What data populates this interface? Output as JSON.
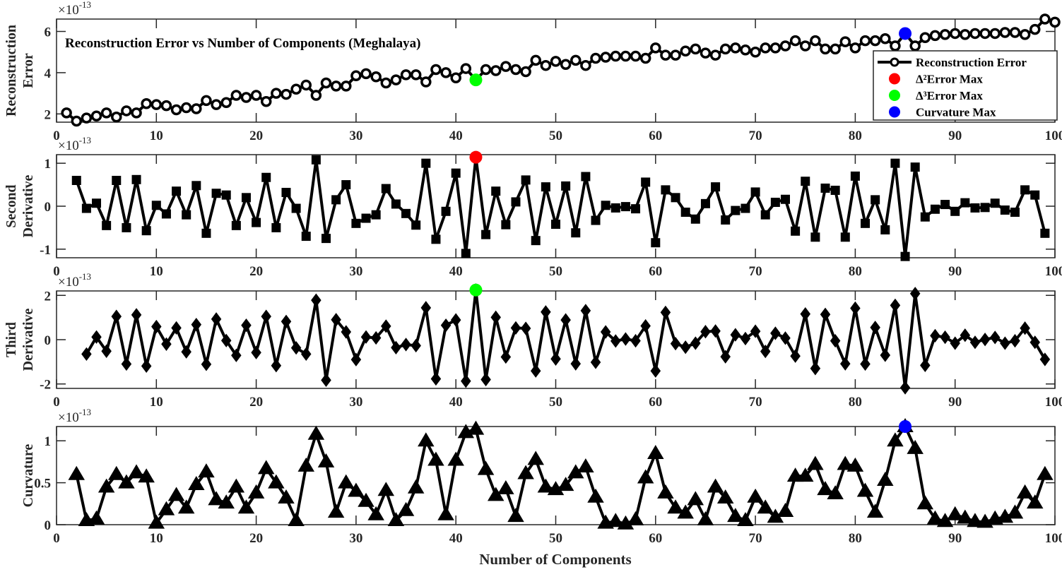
{
  "chart_data": [
    {
      "type": "line",
      "title": "Reconstruction Error vs Number of Components (Meghalaya)",
      "ylabel": [
        "Reconstruction",
        "Error"
      ],
      "xlabel": "",
      "multiplier": "×10",
      "multiplier_exp": "-13",
      "xlim": [
        0,
        100
      ],
      "ylim": [
        1.6,
        6.6
      ],
      "xticks": [
        0,
        10,
        20,
        30,
        40,
        50,
        60,
        70,
        80,
        90,
        100
      ],
      "yticks": [
        2,
        4,
        6
      ],
      "marker": "circle",
      "x_start": 1,
      "values": [
        2.05,
        1.65,
        1.8,
        1.9,
        2.05,
        1.85,
        2.15,
        2.05,
        2.5,
        2.45,
        2.4,
        2.2,
        2.3,
        2.25,
        2.65,
        2.45,
        2.55,
        2.9,
        2.8,
        2.9,
        2.6,
        3.0,
        2.95,
        3.2,
        3.4,
        2.9,
        3.5,
        3.35,
        3.35,
        3.85,
        3.95,
        3.8,
        3.5,
        3.65,
        3.9,
        3.9,
        3.55,
        4.15,
        4.0,
        3.75,
        4.2,
        3.65,
        4.15,
        4.1,
        4.3,
        4.15,
        4.05,
        4.6,
        4.35,
        4.55,
        4.4,
        4.6,
        4.35,
        4.7,
        4.75,
        4.8,
        4.8,
        4.8,
        4.7,
        5.2,
        4.85,
        4.85,
        5.05,
        5.15,
        4.95,
        4.85,
        5.15,
        5.2,
        5.1,
        5.0,
        5.2,
        5.2,
        5.3,
        5.55,
        5.3,
        5.55,
        5.15,
        5.15,
        5.5,
        5.2,
        5.55,
        5.55,
        5.65,
        5.3,
        5.9,
        5.3,
        5.7,
        5.8,
        5.85,
        5.9,
        5.85,
        5.9,
        5.9,
        5.9,
        5.95,
        5.95,
        5.85,
        6.1,
        6.6,
        6.45
      ],
      "highlights": [
        {
          "x": 42,
          "y": 3.65,
          "color": "#00ff00"
        },
        {
          "x": 85,
          "y": 5.9,
          "color": "#0000ff"
        }
      ],
      "legend": {
        "placement": "lower-right",
        "entries": [
          {
            "label": "Reconstruction Error",
            "color": "#000000",
            "type": "line-circle"
          },
          {
            "label": "Δ²Error Max",
            "color": "#ff0000",
            "type": "dot"
          },
          {
            "label": "Δ³Error Max",
            "color": "#00ff00",
            "type": "dot"
          },
          {
            "label": "Curvature Max",
            "color": "#0000ff",
            "type": "dot"
          }
        ]
      }
    },
    {
      "type": "line",
      "ylabel": [
        "Second",
        "Derivative"
      ],
      "multiplier": "×10",
      "multiplier_exp": "-13",
      "xlim": [
        0,
        100
      ],
      "ylim": [
        -1.2,
        1.2
      ],
      "xticks": [
        0,
        10,
        20,
        30,
        40,
        50,
        60,
        70,
        80,
        90,
        100
      ],
      "yticks": [
        -1,
        0,
        1
      ],
      "marker": "square",
      "x_start": 2,
      "values": [
        0.6,
        -0.05,
        0.07,
        -0.45,
        0.6,
        -0.5,
        0.62,
        -0.57,
        0.02,
        -0.18,
        0.35,
        -0.2,
        0.48,
        -0.63,
        0.3,
        0.26,
        -0.45,
        0.2,
        -0.38,
        0.67,
        -0.5,
        0.32,
        -0.05,
        -0.7,
        1.08,
        -0.75,
        0.15,
        0.5,
        -0.4,
        -0.28,
        -0.2,
        0.41,
        0.05,
        -0.17,
        -0.44,
        1.0,
        -0.77,
        -0.12,
        0.77,
        -1.1,
        1.14,
        -0.66,
        0.35,
        -0.43,
        0.1,
        0.61,
        -0.8,
        0.45,
        -0.42,
        0.47,
        -0.62,
        0.69,
        -0.33,
        0.02,
        -0.04,
        -0.01,
        -0.06,
        0.56,
        -0.85,
        0.38,
        0.2,
        -0.14,
        -0.3,
        0.06,
        0.45,
        -0.32,
        -0.1,
        -0.05,
        0.33,
        -0.2,
        0.09,
        0.16,
        -0.58,
        0.58,
        -0.72,
        0.42,
        0.37,
        -0.72,
        0.7,
        -0.4,
        0.15,
        -0.55,
        1.0,
        -1.17,
        0.91,
        -0.25,
        -0.07,
        0.04,
        -0.12,
        0.08,
        -0.04,
        -0.03,
        0.07,
        -0.09,
        -0.14,
        0.38,
        0.26,
        -0.63
      ],
      "highlights": [
        {
          "x": 42,
          "y": 1.14,
          "color": "#ff0000"
        }
      ]
    },
    {
      "type": "line",
      "ylabel": [
        "Third",
        "Derivative"
      ],
      "multiplier": "×10",
      "multiplier_exp": "-13",
      "xlim": [
        0,
        100
      ],
      "ylim": [
        -2.2,
        2.2
      ],
      "xticks": [
        0,
        10,
        20,
        30,
        40,
        50,
        60,
        70,
        80,
        90,
        100
      ],
      "yticks": [
        -2,
        0,
        2
      ],
      "marker": "diamond",
      "x_start": 3,
      "values": [
        -0.65,
        0.12,
        -0.52,
        1.05,
        -1.1,
        1.12,
        -1.19,
        0.59,
        -0.2,
        0.53,
        -0.55,
        0.68,
        -1.11,
        0.93,
        -0.04,
        -0.71,
        0.65,
        -0.58,
        1.05,
        -1.17,
        0.82,
        -0.37,
        -0.65,
        1.78,
        -1.83,
        0.9,
        0.35,
        -0.9,
        0.12,
        0.08,
        0.61,
        -0.36,
        -0.22,
        -0.27,
        1.44,
        -1.77,
        0.65,
        0.89,
        -1.87,
        2.24,
        -1.8,
        1.01,
        -0.78,
        0.53,
        0.51,
        -1.41,
        1.25,
        -0.87,
        0.89,
        -1.09,
        1.31,
        -1.02,
        0.35,
        -0.06,
        0.03,
        -0.05,
        0.62,
        -1.41,
        1.23,
        -0.18,
        -0.34,
        -0.16,
        0.36,
        0.39,
        -0.77,
        0.22,
        0.05,
        0.38,
        -0.53,
        0.29,
        0.07,
        -0.74,
        1.16,
        -1.3,
        1.14,
        -0.05,
        -1.09,
        1.42,
        -1.1,
        0.55,
        -0.7,
        1.55,
        -2.17,
        2.08,
        -1.16,
        0.18,
        0.11,
        -0.16,
        0.2,
        -0.12,
        0.01,
        0.1,
        -0.16,
        -0.05,
        0.52,
        -0.12,
        -0.89
      ],
      "highlights": [
        {
          "x": 42,
          "y": 2.24,
          "color": "#00ff00"
        }
      ]
    },
    {
      "type": "line",
      "ylabel": [
        "Curvature"
      ],
      "xlabel": "Number of Components",
      "multiplier": "×10",
      "multiplier_exp": "-13",
      "xlim": [
        0,
        100
      ],
      "ylim": [
        0,
        1.17
      ],
      "xticks": [
        0,
        10,
        20,
        30,
        40,
        50,
        60,
        70,
        80,
        90,
        100
      ],
      "yticks": [
        0,
        0.5,
        1
      ],
      "marker": "triangle",
      "x_start": 2,
      "values": [
        0.6,
        0.05,
        0.07,
        0.45,
        0.6,
        0.5,
        0.62,
        0.57,
        0.02,
        0.18,
        0.35,
        0.2,
        0.48,
        0.63,
        0.3,
        0.26,
        0.45,
        0.2,
        0.38,
        0.67,
        0.5,
        0.32,
        0.05,
        0.7,
        1.08,
        0.75,
        0.15,
        0.5,
        0.4,
        0.28,
        0.12,
        0.41,
        0.05,
        0.17,
        0.44,
        1.0,
        0.77,
        0.12,
        0.77,
        1.1,
        1.14,
        0.66,
        0.35,
        0.43,
        0.1,
        0.61,
        0.78,
        0.45,
        0.42,
        0.47,
        0.62,
        0.69,
        0.33,
        0.02,
        0.04,
        0.01,
        0.06,
        0.56,
        0.85,
        0.38,
        0.2,
        0.14,
        0.3,
        0.06,
        0.45,
        0.32,
        0.1,
        0.05,
        0.33,
        0.2,
        0.09,
        0.16,
        0.58,
        0.58,
        0.72,
        0.42,
        0.37,
        0.72,
        0.7,
        0.4,
        0.15,
        0.53,
        1.0,
        1.17,
        0.91,
        0.25,
        0.07,
        0.04,
        0.12,
        0.08,
        0.04,
        0.03,
        0.07,
        0.09,
        0.14,
        0.38,
        0.26,
        0.6
      ],
      "highlights": [
        {
          "x": 85,
          "y": 1.17,
          "color": "#0000ff"
        }
      ]
    }
  ]
}
